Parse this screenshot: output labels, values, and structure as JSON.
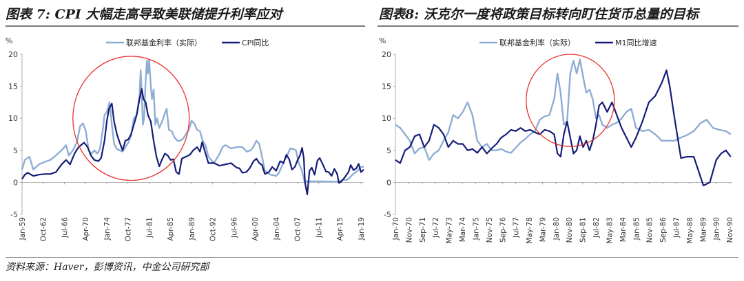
{
  "colors": {
    "light": "#8eadd4",
    "dark": "#141c78",
    "circle": "#e8312a"
  },
  "footer": {
    "source": "资料来源：Haver，彭博资讯，中金公司研究部"
  },
  "chart_data": [
    {
      "type": "line",
      "title": "图表 7: CPI 大幅走高导致美联储提升利率应对",
      "ylabel": "%",
      "ylim": [
        -5,
        20
      ],
      "yticks": [
        -5,
        0,
        5,
        10,
        15,
        20
      ],
      "xlim": [
        1959.0,
        2019.5
      ],
      "xtick_labels": [
        "Jan-59",
        "Oct-62",
        "Jul-66",
        "Apr-70",
        "Jan-74",
        "Oct-77",
        "Jul-81",
        "Apr-85",
        "Jan-89",
        "Oct-92",
        "Jul-96",
        "Apr-00",
        "Jan-04",
        "Oct-07",
        "Jul-11",
        "Apr-15",
        "Jan-19"
      ],
      "xtick_years": [
        1959.0,
        1962.75,
        1966.5,
        1970.25,
        1974.0,
        1977.75,
        1981.5,
        1985.25,
        1989.0,
        1992.75,
        1996.5,
        2000.25,
        2004.0,
        2007.75,
        2011.5,
        2015.25,
        2019.0
      ],
      "legend_position": "top",
      "series": [
        {
          "name": "联邦基金利率（实际）",
          "color_key": "light",
          "x": [
            1959.0,
            1959.5,
            1960.3,
            1961.0,
            1962.0,
            1963.0,
            1964.0,
            1965.0,
            1966.0,
            1966.8,
            1967.3,
            1968.0,
            1968.7,
            1969.3,
            1969.8,
            1970.3,
            1970.8,
            1971.3,
            1971.8,
            1972.3,
            1972.8,
            1973.3,
            1973.6,
            1974.0,
            1974.5,
            1974.9,
            1975.3,
            1975.8,
            1976.3,
            1976.8,
            1977.3,
            1977.8,
            1978.3,
            1978.8,
            1979.3,
            1979.8,
            1980.0,
            1980.2,
            1980.4,
            1980.6,
            1980.9,
            1981.1,
            1981.3,
            1981.5,
            1981.8,
            1982.0,
            1982.3,
            1982.6,
            1982.9,
            1983.3,
            1983.8,
            1984.3,
            1984.6,
            1985.0,
            1985.5,
            1986.0,
            1986.5,
            1987.0,
            1987.5,
            1988.0,
            1988.5,
            1989.0,
            1989.5,
            1990.0,
            1990.5,
            1991.0,
            1991.5,
            1992.0,
            1993.0,
            1994.0,
            1994.5,
            1995.0,
            1996.0,
            1997.0,
            1998.0,
            1998.8,
            1999.5,
            2000.0,
            2000.5,
            2001.0,
            2001.5,
            2002.0,
            2003.0,
            2004.0,
            2004.5,
            2005.0,
            2005.5,
            2006.0,
            2006.5,
            2007.0,
            2007.5,
            2008.0,
            2008.5,
            2009.0,
            2010.0,
            2012.0,
            2014.0,
            2015.0,
            2015.8,
            2016.5,
            2017.0,
            2017.5,
            2018.0,
            2018.5,
            2019.0,
            2019.5
          ],
          "y": [
            2.0,
            3.5,
            4.0,
            2.0,
            2.8,
            3.2,
            3.5,
            4.2,
            5.0,
            5.8,
            4.2,
            5.0,
            6.2,
            8.8,
            9.2,
            8.0,
            5.0,
            4.5,
            5.0,
            4.5,
            5.2,
            8.2,
            10.5,
            11.0,
            12.5,
            9.0,
            6.0,
            5.2,
            5.0,
            4.8,
            5.5,
            6.2,
            7.2,
            10.0,
            10.5,
            13.5,
            17.5,
            14.0,
            9.0,
            10.0,
            16.0,
            19.0,
            17.0,
            19.2,
            15.0,
            13.0,
            14.5,
            9.0,
            10.0,
            8.5,
            9.5,
            10.8,
            11.5,
            8.2,
            8.0,
            7.0,
            6.5,
            6.5,
            6.8,
            7.5,
            8.2,
            9.6,
            9.2,
            8.2,
            8.0,
            6.5,
            5.8,
            4.0,
            3.0,
            4.5,
            5.5,
            5.8,
            5.3,
            5.5,
            5.5,
            4.8,
            5.0,
            5.6,
            6.5,
            6.0,
            4.0,
            1.8,
            1.2,
            1.0,
            1.5,
            2.5,
            3.5,
            4.3,
            5.3,
            5.2,
            5.0,
            3.0,
            2.0,
            0.2,
            0.15,
            0.15,
            0.1,
            0.1,
            0.4,
            0.4,
            0.7,
            1.2,
            1.5,
            1.9,
            2.4,
            2.4
          ]
        },
        {
          "name": "CPI同比",
          "color_key": "dark",
          "x": [
            1959.0,
            1959.5,
            1960.0,
            1961.0,
            1962.0,
            1963.0,
            1964.0,
            1965.0,
            1966.0,
            1966.8,
            1967.5,
            1968.3,
            1969.0,
            1969.7,
            1970.0,
            1970.6,
            1971.2,
            1971.8,
            1972.5,
            1973.0,
            1973.6,
            1974.0,
            1974.4,
            1974.9,
            1975.3,
            1975.8,
            1976.3,
            1976.8,
            1977.3,
            1977.8,
            1978.3,
            1978.8,
            1979.3,
            1979.8,
            1980.2,
            1980.5,
            1980.9,
            1981.3,
            1981.8,
            1982.3,
            1982.8,
            1983.3,
            1983.8,
            1984.3,
            1984.8,
            1985.3,
            1985.8,
            1986.3,
            1986.8,
            1987.3,
            1988.0,
            1988.7,
            1989.3,
            1990.0,
            1990.5,
            1990.9,
            1991.5,
            1992.0,
            1993.0,
            1994.0,
            1995.0,
            1996.0,
            1997.0,
            1997.5,
            1998.0,
            1998.7,
            1999.3,
            2000.0,
            2000.5,
            2001.0,
            2001.5,
            2002.0,
            2002.7,
            2003.3,
            2004.0,
            2004.7,
            2005.3,
            2005.8,
            2006.3,
            2006.8,
            2007.3,
            2007.8,
            2008.2,
            2008.6,
            2008.9,
            2009.1,
            2009.5,
            2009.9,
            2010.3,
            2010.8,
            2011.3,
            2011.7,
            2012.3,
            2012.8,
            2013.3,
            2013.8,
            2014.3,
            2014.8,
            2015.1,
            2015.5,
            2015.9,
            2016.3,
            2016.8,
            2017.2,
            2017.7,
            2018.2,
            2018.6,
            2019.0,
            2019.5
          ],
          "y": [
            0.5,
            1.2,
            1.5,
            1.0,
            1.2,
            1.3,
            1.3,
            1.6,
            2.8,
            3.5,
            2.8,
            4.5,
            5.5,
            6.0,
            6.2,
            5.5,
            4.2,
            3.5,
            3.3,
            3.8,
            6.5,
            9.5,
            11.5,
            12.3,
            9.5,
            7.5,
            6.2,
            5.0,
            6.5,
            6.7,
            7.5,
            9.0,
            10.5,
            13.0,
            14.6,
            13.0,
            12.5,
            10.5,
            9.5,
            6.5,
            4.0,
            2.5,
            3.6,
            4.5,
            4.2,
            3.5,
            3.6,
            1.6,
            1.3,
            3.7,
            4.0,
            4.3,
            5.0,
            5.5,
            4.8,
            6.3,
            4.5,
            3.0,
            3.0,
            2.6,
            2.8,
            3.0,
            2.3,
            2.2,
            1.5,
            1.6,
            2.2,
            3.3,
            3.7,
            3.0,
            2.7,
            1.3,
            1.6,
            2.4,
            1.8,
            3.3,
            3.0,
            4.3,
            3.6,
            2.0,
            2.4,
            3.5,
            4.2,
            5.4,
            3.7,
            0.0,
            -1.9,
            1.8,
            2.3,
            1.2,
            3.4,
            3.8,
            2.7,
            1.7,
            1.6,
            1.0,
            2.1,
            1.3,
            -0.1,
            0.1,
            0.5,
            1.0,
            1.6,
            2.7,
            1.9,
            2.2,
            2.9,
            1.6,
            2.0
          ]
        }
      ],
      "annotation": {
        "type": "ellipse",
        "x_center": 1978.3,
        "y_center": 10.0,
        "x_radius": 10.3,
        "y_radius": 9.7
      }
    },
    {
      "type": "line",
      "title": "图表8:  沃克尔一度将政策目标转向盯住货币总量的目标",
      "ylabel": "%",
      "ylim": [
        -5,
        20
      ],
      "yticks": [
        -5,
        0,
        5,
        10,
        15,
        20
      ],
      "xlim": [
        1970.0,
        1991.0
      ],
      "xtick_labels": [
        "Jan-70",
        "Nov-70",
        "Sep-71",
        "Jul-72",
        "May-73",
        "Mar-74",
        "Jan-75",
        "Nov-75",
        "Sep-76",
        "Jul-77",
        "May-78",
        "Mar-79",
        "Jan-80",
        "Nov-80",
        "Sep-81",
        "Jul-82",
        "May-83",
        "Mar-84",
        "Jan-85",
        "Nov-85",
        "Sep-86",
        "Jul-87",
        "May-88",
        "Mar-89",
        "Jan-90",
        "Nov-90"
      ],
      "xtick_years": [
        1970.0,
        1970.83,
        1971.67,
        1972.5,
        1973.33,
        1974.17,
        1975.0,
        1975.83,
        1976.67,
        1977.5,
        1978.33,
        1979.17,
        1980.0,
        1980.83,
        1981.67,
        1982.5,
        1983.33,
        1984.17,
        1985.0,
        1985.83,
        1986.67,
        1987.5,
        1988.33,
        1989.17,
        1990.0,
        1990.83
      ],
      "legend_position": "top",
      "series": [
        {
          "name": "联邦基金利率（实际）",
          "color_key": "light",
          "x": [
            1970.0,
            1970.3,
            1970.6,
            1970.9,
            1971.2,
            1971.5,
            1971.8,
            1972.1,
            1972.4,
            1972.7,
            1973.0,
            1973.3,
            1973.6,
            1973.9,
            1974.2,
            1974.5,
            1974.8,
            1975.1,
            1975.4,
            1975.7,
            1976.0,
            1976.3,
            1976.6,
            1976.9,
            1977.2,
            1977.5,
            1977.8,
            1978.1,
            1978.4,
            1978.7,
            1979.0,
            1979.3,
            1979.6,
            1979.9,
            1980.1,
            1980.3,
            1980.5,
            1980.7,
            1980.9,
            1981.1,
            1981.3,
            1981.5,
            1981.7,
            1981.9,
            1982.1,
            1982.3,
            1982.5,
            1982.7,
            1982.9,
            1983.2,
            1983.5,
            1983.8,
            1984.1,
            1984.4,
            1984.7,
            1985.0,
            1985.4,
            1985.8,
            1986.2,
            1986.6,
            1987.0,
            1987.4,
            1987.8,
            1988.2,
            1988.6,
            1989.0,
            1989.4,
            1989.8,
            1990.2,
            1990.6,
            1990.9
          ],
          "y": [
            9.0,
            8.5,
            7.5,
            6.5,
            4.5,
            5.3,
            5.5,
            3.5,
            4.5,
            5.0,
            6.5,
            7.8,
            10.5,
            10.0,
            11.0,
            12.5,
            10.5,
            6.5,
            5.5,
            6.0,
            5.0,
            5.0,
            5.2,
            4.8,
            4.6,
            5.4,
            6.2,
            6.8,
            7.5,
            8.0,
            9.8,
            10.3,
            10.5,
            13.0,
            17.0,
            14.0,
            9.0,
            9.5,
            17.0,
            19.0,
            17.0,
            19.2,
            16.5,
            14.0,
            14.5,
            13.0,
            10.0,
            10.5,
            9.0,
            8.5,
            9.0,
            9.3,
            10.0,
            11.0,
            11.5,
            8.5,
            8.0,
            8.2,
            7.5,
            6.5,
            6.5,
            6.5,
            7.0,
            7.4,
            8.0,
            9.2,
            9.8,
            8.5,
            8.2,
            8.0,
            7.5
          ]
        },
        {
          "name": "M1同比增速",
          "color_key": "dark",
          "x": [
            1970.0,
            1970.3,
            1970.6,
            1970.9,
            1971.2,
            1971.5,
            1971.8,
            1972.1,
            1972.4,
            1972.7,
            1973.0,
            1973.3,
            1973.6,
            1973.9,
            1974.2,
            1974.5,
            1974.8,
            1975.1,
            1975.4,
            1975.7,
            1976.0,
            1976.3,
            1976.6,
            1976.9,
            1977.2,
            1977.5,
            1977.8,
            1978.1,
            1978.4,
            1978.7,
            1979.0,
            1979.3,
            1979.6,
            1979.9,
            1980.1,
            1980.3,
            1980.5,
            1980.7,
            1980.9,
            1981.1,
            1981.3,
            1981.5,
            1981.7,
            1981.9,
            1982.1,
            1982.3,
            1982.5,
            1982.7,
            1982.9,
            1983.2,
            1983.5,
            1983.8,
            1984.1,
            1984.4,
            1984.7,
            1985.0,
            1985.4,
            1985.8,
            1986.2,
            1986.6,
            1986.9,
            1987.1,
            1987.4,
            1987.8,
            1988.2,
            1988.6,
            1989.0,
            1989.2,
            1989.6,
            1990.0,
            1990.3,
            1990.6,
            1990.9
          ],
          "y": [
            3.5,
            3.0,
            5.0,
            5.5,
            7.2,
            7.5,
            5.5,
            6.5,
            9.0,
            8.5,
            7.5,
            5.5,
            6.5,
            6.0,
            6.0,
            5.0,
            5.2,
            4.6,
            5.5,
            4.5,
            5.3,
            6.0,
            7.0,
            7.5,
            8.2,
            8.0,
            8.5,
            8.0,
            8.2,
            7.8,
            7.5,
            8.2,
            8.0,
            7.5,
            4.5,
            4.0,
            7.5,
            9.5,
            7.0,
            4.5,
            5.0,
            7.2,
            5.5,
            6.5,
            5.0,
            6.5,
            9.0,
            12.0,
            12.5,
            11.0,
            12.5,
            10.5,
            8.5,
            7.0,
            5.5,
            7.0,
            9.5,
            12.5,
            13.5,
            15.5,
            17.5,
            15.0,
            10.0,
            3.8,
            4.0,
            4.0,
            1.0,
            -0.5,
            0.0,
            3.5,
            4.5,
            5.0,
            4.0
          ]
        }
      ],
      "annotation": {
        "type": "ellipse",
        "x_center": 1980.9,
        "y_center": 12.8,
        "x_radius": 2.75,
        "y_radius": 7.2
      }
    }
  ]
}
